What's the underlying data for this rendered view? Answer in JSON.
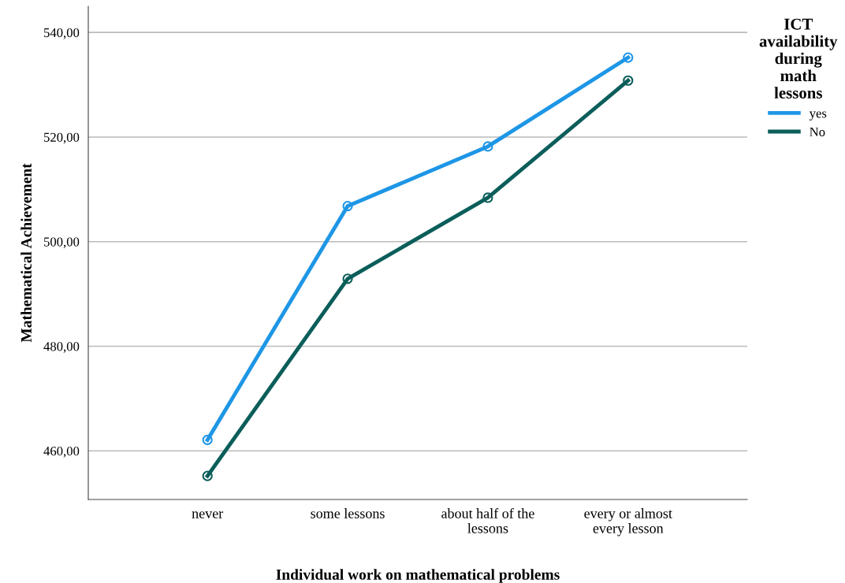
{
  "chart_data": {
    "type": "line",
    "xlabel": "Individual work on mathematical problems",
    "ylabel": "Mathematical Achievement",
    "legend_title": "ICT\navailability\nduring\nmath\nlessons",
    "categories": [
      "never",
      "some lessons",
      "about half of the\nlessons",
      "every or almost\nevery lesson"
    ],
    "series": [
      {
        "name": "yes",
        "color": "#1e96e6",
        "values": [
          462.1,
          506.8,
          518.2,
          535.2
        ]
      },
      {
        "name": "No",
        "color": "#0b5e5a",
        "values": [
          455.2,
          492.9,
          508.4,
          530.8
        ]
      }
    ],
    "ylim": [
      450.7,
      545
    ],
    "yticks": [
      {
        "value": 460,
        "label": "460,00"
      },
      {
        "value": 480,
        "label": "480,00"
      },
      {
        "value": 500,
        "label": "500,00"
      },
      {
        "value": 520,
        "label": "520,00"
      },
      {
        "value": 540,
        "label": "540,00"
      }
    ],
    "grid": "y",
    "legend": "top right",
    "marker": "circle",
    "line_style": "solid"
  }
}
